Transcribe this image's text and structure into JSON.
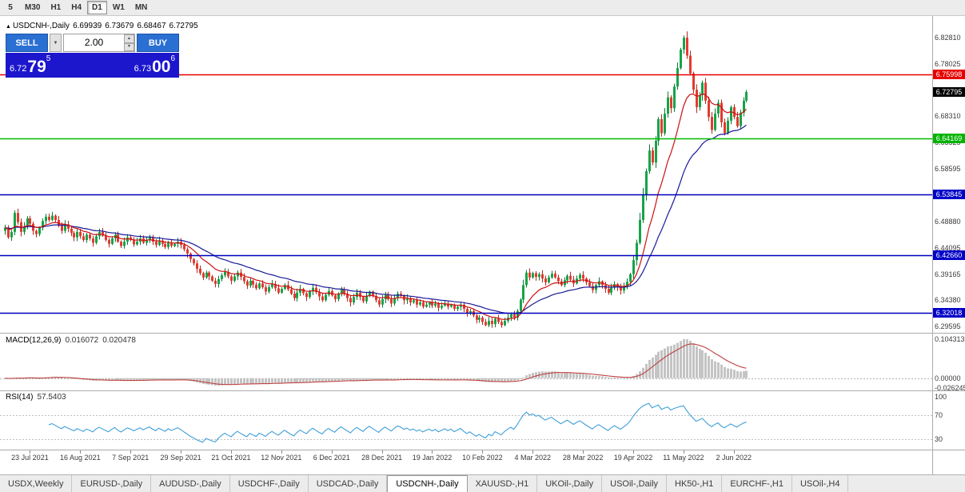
{
  "toolbar": {
    "timeframes": [
      {
        "label": "5",
        "active": false
      },
      {
        "label": "M30",
        "active": false
      },
      {
        "label": "H1",
        "active": false
      },
      {
        "label": "H4",
        "active": false
      },
      {
        "label": "D1",
        "active": true
      },
      {
        "label": "W1",
        "active": false
      },
      {
        "label": "MN",
        "active": false
      }
    ]
  },
  "quote_line": {
    "arrow": "▲",
    "symbol": "USDCNH-,Daily",
    "open": "6.69939",
    "high": "6.73679",
    "low": "6.68467",
    "close": "6.72795"
  },
  "trade_panel": {
    "sell_label": "SELL",
    "buy_label": "BUY",
    "volume": "2.00",
    "sell_price": {
      "prefix": "6.72",
      "big": "79",
      "sup": "5"
    },
    "buy_price": {
      "prefix": "6.73",
      "big": "00",
      "sup": "6"
    },
    "panel_color": "#1c16cd",
    "button_color": "#2a6fd2"
  },
  "price_axis": {
    "labels": [
      {
        "text": "6.82810",
        "value": 6.8281
      },
      {
        "text": "6.78025",
        "value": 6.78025
      },
      {
        "text": "6.68310",
        "value": 6.6831
      },
      {
        "text": "6.63525",
        "value": 6.63525
      },
      {
        "text": "6.58595",
        "value": 6.58595
      },
      {
        "text": "6.48880",
        "value": 6.4888
      },
      {
        "text": "6.44095",
        "value": 6.44095
      },
      {
        "text": "6.39165",
        "value": 6.39165
      },
      {
        "text": "6.34380",
        "value": 6.3438
      },
      {
        "text": "6.29595",
        "value": 6.29595
      }
    ],
    "badges": [
      {
        "text": "6.75998",
        "value": 6.75998,
        "bg": "#e80000"
      },
      {
        "text": "6.72795",
        "value": 6.72795,
        "bg": "#000000"
      },
      {
        "text": "6.64169",
        "value": 6.64169,
        "bg": "#00b400"
      },
      {
        "text": "6.53845",
        "value": 6.53845,
        "bg": "#0000c8"
      },
      {
        "text": "6.42660",
        "value": 6.4266,
        "bg": "#0000c8"
      },
      {
        "text": "6.32018",
        "value": 6.32018,
        "bg": "#0000c8"
      }
    ]
  },
  "hlines": [
    {
      "value": 6.75998,
      "color": "#e80000"
    },
    {
      "value": 6.64169,
      "color": "#00bb00"
    },
    {
      "value": 6.53845,
      "color": "#0000bb"
    },
    {
      "value": 6.4266,
      "color": "#0000bb"
    },
    {
      "value": 6.32018,
      "color": "#0000bb"
    }
  ],
  "macd": {
    "label": "MACD(12,26,9)",
    "value_main": "0.016072",
    "value_signal": "0.020478",
    "fast": 12,
    "slow": 26,
    "signal_period": 9,
    "axis": [
      {
        "text": "0.104313",
        "value": 0.104313
      },
      {
        "text": "0.00000",
        "value": 0
      },
      {
        "text": "-0.026245",
        "value": -0.026245
      }
    ]
  },
  "rsi": {
    "label": "RSI(14)",
    "value": "57.5403",
    "period": 14,
    "axis": [
      {
        "text": "100",
        "value": 100
      },
      {
        "text": "70",
        "value": 70
      },
      {
        "text": "30",
        "value": 30
      }
    ]
  },
  "date_axis": {
    "first_bar": 8,
    "bar_step": 16,
    "labels": [
      "23 Jul 2021",
      "16 Aug 2021",
      "7 Sep 2021",
      "29 Sep 2021",
      "21 Oct 2021",
      "12 Nov 2021",
      "6 Dec 2021",
      "28 Dec 2021",
      "19 Jan 2022",
      "10 Feb 2022",
      "4 Mar 2022",
      "28 Mar 2022",
      "19 Apr 2022",
      "11 May 2022",
      "2 Jun 2022"
    ]
  },
  "tabs": [
    {
      "label": "USDX,Weekly",
      "active": false
    },
    {
      "label": "EURUSD-,Daily",
      "active": false
    },
    {
      "label": "AUDUSD-,Daily",
      "active": false
    },
    {
      "label": "USDCHF-,Daily",
      "active": false
    },
    {
      "label": "USDCAD-,Daily",
      "active": false
    },
    {
      "label": "USDCNH-,Daily",
      "active": true
    },
    {
      "label": "XAUUSD-,H1",
      "active": false
    },
    {
      "label": "UKOil-,Daily",
      "active": false
    },
    {
      "label": "USOil-,Daily",
      "active": false
    },
    {
      "label": "HK50-,H1",
      "active": false
    },
    {
      "label": "EURCHF-,H1",
      "active": false
    },
    {
      "label": "USOil-,H4",
      "active": false
    }
  ],
  "chart_data": {
    "type": "candlestick",
    "symbol": "USDCNH-",
    "timeframe": "Daily",
    "title": "USDCNH-,Daily",
    "ohlc_display": {
      "open": 6.69939,
      "high": 6.73679,
      "low": 6.68467,
      "close": 6.72795
    },
    "price_scale": {
      "top": 6.868,
      "bottom": 6.284
    },
    "ma_fast_period": 12,
    "ma_slow_period": 30,
    "colors": {
      "up": "#17a348",
      "up_border": "#0c7a37",
      "down": "#e23b30",
      "down_border": "#b02a22",
      "ma_fast": "#cc1111",
      "ma_slow": "#1a1a99",
      "macd_hist": "#c4c4c4",
      "macd_signal": "#c04040",
      "rsi_line": "#3f9fd8"
    },
    "closes": [
      6.478,
      6.46,
      6.47,
      6.505,
      6.488,
      6.47,
      6.48,
      6.495,
      6.485,
      6.472,
      6.466,
      6.478,
      6.49,
      6.498,
      6.492,
      6.5,
      6.492,
      6.481,
      6.472,
      6.484,
      6.476,
      6.468,
      6.46,
      6.47,
      6.462,
      6.455,
      6.465,
      6.458,
      6.45,
      6.462,
      6.47,
      6.463,
      6.455,
      6.448,
      6.458,
      6.465,
      6.452,
      6.444,
      6.452,
      6.46,
      6.455,
      6.447,
      6.452,
      6.458,
      6.45,
      6.455,
      6.46,
      6.452,
      6.446,
      6.454,
      6.448,
      6.442,
      6.45,
      6.444,
      6.448,
      6.452,
      6.446,
      6.438,
      6.43,
      6.42,
      6.412,
      6.402,
      6.394,
      6.386,
      6.395,
      6.388,
      6.38,
      6.374,
      6.383,
      6.39,
      6.396,
      6.388,
      6.38,
      6.388,
      6.395,
      6.387,
      6.379,
      6.371,
      6.38,
      6.373,
      6.366,
      6.375,
      6.368,
      6.36,
      6.368,
      6.374,
      6.366,
      6.358,
      6.365,
      6.372,
      6.364,
      6.356,
      6.348,
      6.358,
      6.365,
      6.357,
      6.35,
      6.36,
      6.367,
      6.359,
      6.351,
      6.344,
      6.354,
      6.361,
      6.353,
      6.346,
      6.356,
      6.364,
      6.356,
      6.348,
      6.34,
      6.35,
      6.358,
      6.35,
      6.342,
      6.352,
      6.36,
      6.352,
      6.344,
      6.336,
      6.346,
      6.354,
      6.346,
      6.338,
      6.348,
      6.356,
      6.352,
      6.344,
      6.348,
      6.34,
      6.344,
      6.336,
      6.34,
      6.332,
      6.336,
      6.34,
      6.334,
      6.338,
      6.33,
      6.334,
      6.338,
      6.332,
      6.336,
      6.328,
      6.332,
      6.336,
      6.328,
      6.32,
      6.324,
      6.316,
      6.308,
      6.312,
      6.304,
      6.298,
      6.306,
      6.3,
      6.31,
      6.304,
      6.298,
      6.306,
      6.312,
      6.318,
      6.312,
      6.324,
      6.345,
      6.372,
      6.395,
      6.386,
      6.394,
      6.387,
      6.392,
      6.384,
      6.377,
      6.386,
      6.393,
      6.386,
      6.379,
      6.372,
      6.381,
      6.389,
      6.382,
      6.375,
      6.384,
      6.391,
      6.384,
      6.377,
      6.37,
      6.363,
      6.372,
      6.379,
      6.372,
      6.365,
      6.358,
      6.367,
      6.374,
      6.368,
      6.362,
      6.37,
      6.378,
      6.392,
      6.418,
      6.45,
      6.492,
      6.538,
      6.582,
      6.62,
      6.598,
      6.638,
      6.678,
      6.652,
      6.688,
      6.718,
      6.698,
      6.738,
      6.772,
      6.806,
      6.828,
      6.795,
      6.762,
      6.732,
      6.7,
      6.722,
      6.745,
      6.712,
      6.682,
      6.658,
      6.688,
      6.708,
      6.672,
      6.652,
      6.675,
      6.7,
      6.682,
      6.665,
      6.69,
      6.712,
      6.728
    ]
  }
}
